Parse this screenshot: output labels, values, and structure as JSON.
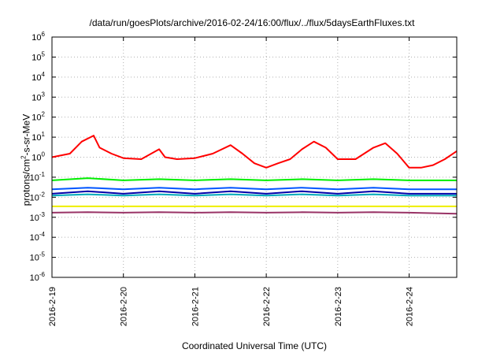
{
  "chart_data": {
    "type": "line",
    "title": "/data/run/goesPlots/archive/2016-02-24/16:00/flux/../flux/5daysEarthFluxes.txt",
    "xlabel": "Coordinated Universal Time (UTC)",
    "ylabel": {
      "prefix": "protons/cm",
      "sup": "2",
      "suffix": "-s-sr-MeV"
    },
    "y_scale": "log",
    "ylim": [
      1e-06,
      1000000.0
    ],
    "y_ticks": [
      {
        "base": "10",
        "exp": "-6"
      },
      {
        "base": "10",
        "exp": "-5"
      },
      {
        "base": "10",
        "exp": "-4"
      },
      {
        "base": "10",
        "exp": "-3"
      },
      {
        "base": "10",
        "exp": "-2"
      },
      {
        "base": "10",
        "exp": "-1"
      },
      {
        "base": "10",
        "exp": "0"
      },
      {
        "base": "10",
        "exp": "1"
      },
      {
        "base": "10",
        "exp": "2"
      },
      {
        "base": "10",
        "exp": "3"
      },
      {
        "base": "10",
        "exp": "4"
      },
      {
        "base": "10",
        "exp": "5"
      },
      {
        "base": "10",
        "exp": "6"
      }
    ],
    "xlim": [
      "2016-02-19 00:00",
      "2016-02-24 16:00"
    ],
    "x_ticks": [
      "2016-2-19",
      "2016-2-20",
      "2016-2-21",
      "2016-2-22",
      "2016-2-23",
      "2016-2-24"
    ],
    "grid": true,
    "legend": "none",
    "series": [
      {
        "color": "#ff0000",
        "x": [
          "2016-02-19 00:00",
          "2016-02-19 06:00",
          "2016-02-19 10:00",
          "2016-02-19 14:00",
          "2016-02-19 16:00",
          "2016-02-19 20:00",
          "2016-02-20 00:00",
          "2016-02-20 06:00",
          "2016-02-20 12:00",
          "2016-02-20 14:00",
          "2016-02-20 18:00",
          "2016-02-21 00:00",
          "2016-02-21 06:00",
          "2016-02-21 12:00",
          "2016-02-21 16:00",
          "2016-02-21 20:00",
          "2016-02-22 00:00",
          "2016-02-22 04:00",
          "2016-02-22 08:00",
          "2016-02-22 12:00",
          "2016-02-22 16:00",
          "2016-02-22 20:00",
          "2016-02-23 00:00",
          "2016-02-23 06:00",
          "2016-02-23 12:00",
          "2016-02-23 16:00",
          "2016-02-23 20:00",
          "2016-02-24 00:00",
          "2016-02-24 04:00",
          "2016-02-24 08:00",
          "2016-02-24 12:00",
          "2016-02-24 16:00"
        ],
        "y": [
          1.0,
          1.5,
          6,
          12,
          3,
          1.5,
          0.9,
          0.8,
          2.5,
          1.0,
          0.8,
          0.9,
          1.5,
          4,
          1.5,
          0.5,
          0.3,
          0.5,
          0.8,
          2.5,
          6,
          3,
          0.8,
          0.8,
          3,
          5,
          1.5,
          0.3,
          0.3,
          0.4,
          0.8,
          2.0
        ]
      },
      {
        "color": "#00ee00",
        "x": [
          "2016-02-19 00:00",
          "2016-02-19 12:00",
          "2016-02-20 00:00",
          "2016-02-20 12:00",
          "2016-02-21 00:00",
          "2016-02-21 12:00",
          "2016-02-22 00:00",
          "2016-02-22 12:00",
          "2016-02-23 00:00",
          "2016-02-23 12:00",
          "2016-02-24 00:00",
          "2016-02-24 16:00"
        ],
        "y": [
          0.07,
          0.09,
          0.07,
          0.08,
          0.07,
          0.08,
          0.07,
          0.08,
          0.07,
          0.08,
          0.07,
          0.07
        ]
      },
      {
        "color": "#0055ff",
        "x": [
          "2016-02-19 00:00",
          "2016-02-19 12:00",
          "2016-02-20 00:00",
          "2016-02-20 12:00",
          "2016-02-21 00:00",
          "2016-02-21 12:00",
          "2016-02-22 00:00",
          "2016-02-22 12:00",
          "2016-02-23 00:00",
          "2016-02-23 12:00",
          "2016-02-24 00:00",
          "2016-02-24 16:00"
        ],
        "y": [
          0.025,
          0.03,
          0.025,
          0.03,
          0.025,
          0.03,
          0.025,
          0.03,
          0.025,
          0.03,
          0.025,
          0.025
        ]
      },
      {
        "color": "#00aabb",
        "x": [
          "2016-02-19 00:00",
          "2016-02-19 12:00",
          "2016-02-20 00:00",
          "2016-02-20 12:00",
          "2016-02-21 00:00",
          "2016-02-21 12:00",
          "2016-02-22 00:00",
          "2016-02-22 12:00",
          "2016-02-23 00:00",
          "2016-02-23 12:00",
          "2016-02-24 00:00",
          "2016-02-24 16:00"
        ],
        "y": [
          0.012,
          0.014,
          0.012,
          0.014,
          0.012,
          0.014,
          0.012,
          0.014,
          0.012,
          0.014,
          0.012,
          0.012
        ]
      },
      {
        "color": "#0000aa",
        "x": [
          "2016-02-19 00:00",
          "2016-02-19 12:00",
          "2016-02-20 00:00",
          "2016-02-20 12:00",
          "2016-02-21 00:00",
          "2016-02-21 12:00",
          "2016-02-22 00:00",
          "2016-02-22 12:00",
          "2016-02-23 00:00",
          "2016-02-23 12:00",
          "2016-02-24 00:00",
          "2016-02-24 16:00"
        ],
        "y": [
          0.015,
          0.02,
          0.015,
          0.02,
          0.015,
          0.02,
          0.015,
          0.02,
          0.015,
          0.02,
          0.015,
          0.015
        ]
      },
      {
        "color": "#eeee00",
        "x": [
          "2016-02-19 00:00",
          "2016-02-20 00:00",
          "2016-02-21 00:00",
          "2016-02-22 00:00",
          "2016-02-23 00:00",
          "2016-02-24 00:00",
          "2016-02-24 16:00"
        ],
        "y": [
          0.0035,
          0.0035,
          0.0035,
          0.0035,
          0.0035,
          0.0035,
          0.0035
        ]
      },
      {
        "color": "#993366",
        "x": [
          "2016-02-19 00:00",
          "2016-02-19 12:00",
          "2016-02-20 00:00",
          "2016-02-20 12:00",
          "2016-02-21 00:00",
          "2016-02-21 12:00",
          "2016-02-22 00:00",
          "2016-02-22 12:00",
          "2016-02-23 00:00",
          "2016-02-23 12:00",
          "2016-02-24 00:00",
          "2016-02-24 16:00"
        ],
        "y": [
          0.0017,
          0.0018,
          0.0017,
          0.0018,
          0.0017,
          0.0018,
          0.0017,
          0.0018,
          0.0017,
          0.0018,
          0.0017,
          0.0015
        ]
      }
    ]
  }
}
